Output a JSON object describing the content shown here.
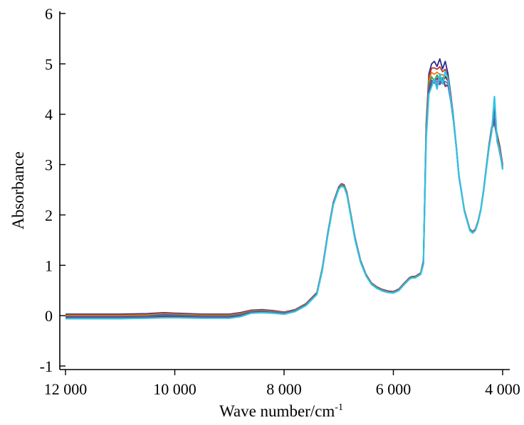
{
  "chart_data": {
    "type": "line",
    "title": "",
    "xlabel": "Wave number/cm",
    "xlabel_superscript": "-1",
    "ylabel": "Absorbance",
    "xlim": [
      12000,
      4000
    ],
    "ylim": [
      -1,
      6
    ],
    "x_reversed": true,
    "grid": false,
    "legend": "none",
    "x_ticks": [
      {
        "value": 12000,
        "label": "12 000"
      },
      {
        "value": 10000,
        "label": "10 000"
      },
      {
        "value": 8000,
        "label": "8 000"
      },
      {
        "value": 6000,
        "label": "6 000"
      },
      {
        "value": 4000,
        "label": "4 000"
      }
    ],
    "y_ticks": [
      {
        "value": -1,
        "label": "-1"
      },
      {
        "value": 0,
        "label": "0"
      },
      {
        "value": 1,
        "label": "1"
      },
      {
        "value": 2,
        "label": "2"
      },
      {
        "value": 3,
        "label": "3"
      },
      {
        "value": 4,
        "label": "4"
      },
      {
        "value": 5,
        "label": "5"
      },
      {
        "value": 6,
        "label": "6"
      }
    ],
    "series_colors": [
      "#2b2b8a",
      "#c0392b",
      "#e67e22",
      "#3a9b3a",
      "#7b3fa0",
      "#4a6fd1",
      "#8b1a1a",
      "#2ec4e6"
    ],
    "x": [
      12000,
      11500,
      11000,
      10500,
      10200,
      10000,
      9500,
      9000,
      8800,
      8600,
      8400,
      8200,
      8000,
      7800,
      7600,
      7400,
      7300,
      7200,
      7100,
      7000,
      6950,
      6900,
      6850,
      6800,
      6700,
      6600,
      6500,
      6400,
      6300,
      6200,
      6100,
      6000,
      5900,
      5800,
      5700,
      5650,
      5600,
      5500,
      5450,
      5400,
      5350,
      5300,
      5250,
      5200,
      5150,
      5100,
      5050,
      5000,
      4950,
      4900,
      4850,
      4800,
      4700,
      4600,
      4550,
      4500,
      4450,
      4400,
      4350,
      4300,
      4250,
      4200,
      4150,
      4100,
      4050,
      4000
    ],
    "series": [
      {
        "values": [
          0.03,
          0.03,
          0.03,
          0.04,
          0.06,
          0.05,
          0.03,
          0.03,
          0.06,
          0.11,
          0.12,
          0.1,
          0.07,
          0.12,
          0.24,
          0.46,
          0.95,
          1.65,
          2.25,
          2.56,
          2.62,
          2.6,
          2.45,
          2.15,
          1.55,
          1.1,
          0.82,
          0.65,
          0.57,
          0.52,
          0.49,
          0.48,
          0.53,
          0.65,
          0.76,
          0.78,
          0.78,
          0.85,
          1.1,
          3.8,
          4.8,
          5.0,
          5.05,
          4.95,
          5.1,
          4.9,
          5.05,
          4.8,
          4.4,
          3.95,
          3.4,
          2.8,
          2.1,
          1.72,
          1.67,
          1.72,
          1.88,
          2.12,
          2.5,
          2.95,
          3.4,
          3.75,
          3.9,
          3.6,
          3.35,
          3.0
        ]
      },
      {
        "values": [
          -0.02,
          -0.02,
          -0.02,
          -0.01,
          0.02,
          0.01,
          -0.01,
          -0.01,
          0.02,
          0.08,
          0.09,
          0.07,
          0.05,
          0.1,
          0.22,
          0.44,
          0.92,
          1.62,
          2.22,
          2.53,
          2.59,
          2.57,
          2.42,
          2.12,
          1.52,
          1.08,
          0.8,
          0.63,
          0.55,
          0.5,
          0.47,
          0.46,
          0.51,
          0.63,
          0.74,
          0.76,
          0.76,
          0.83,
          1.05,
          3.6,
          4.55,
          4.7,
          4.6,
          4.75,
          4.55,
          4.7,
          4.5,
          4.55,
          4.25,
          3.85,
          3.35,
          2.75,
          2.08,
          1.7,
          1.65,
          1.7,
          1.86,
          2.1,
          2.47,
          2.92,
          3.35,
          3.7,
          3.8,
          3.5,
          3.2,
          2.95
        ]
      },
      {
        "values": [
          -0.06,
          -0.06,
          -0.06,
          -0.05,
          -0.04,
          -0.04,
          -0.05,
          -0.05,
          -0.02,
          0.05,
          0.06,
          0.05,
          0.03,
          0.08,
          0.2,
          0.42,
          0.9,
          1.6,
          2.2,
          2.51,
          2.57,
          2.55,
          2.4,
          2.1,
          1.5,
          1.06,
          0.79,
          0.62,
          0.54,
          0.49,
          0.46,
          0.45,
          0.5,
          0.62,
          0.73,
          0.75,
          0.75,
          0.82,
          1.02,
          3.5,
          4.4,
          4.55,
          4.7,
          4.5,
          4.8,
          4.6,
          4.85,
          4.7,
          4.3,
          3.9,
          3.38,
          2.78,
          2.07,
          1.69,
          1.64,
          1.69,
          1.85,
          2.09,
          2.46,
          2.9,
          3.33,
          3.65,
          4.35,
          3.45,
          3.25,
          2.9
        ]
      }
    ]
  }
}
